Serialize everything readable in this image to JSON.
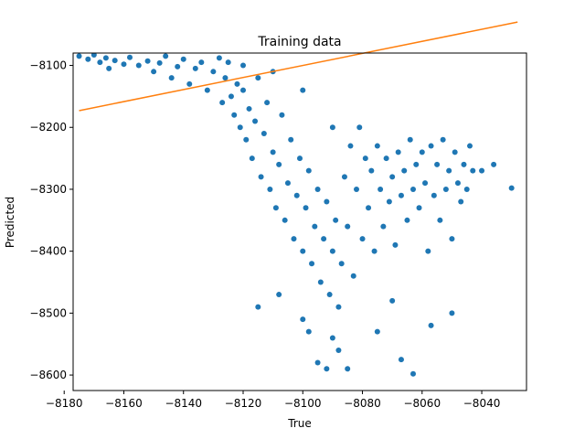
{
  "chart_data": {
    "type": "scatter",
    "title": "Training data",
    "xlabel": "True",
    "ylabel": "Predicted",
    "xlim": [
      -8177,
      -8025
    ],
    "ylim": [
      -8625,
      -8080
    ],
    "xticks": [
      -8180,
      -8160,
      -8140,
      -8120,
      -8100,
      -8080,
      -8060,
      -8040
    ],
    "yticks": [
      -8100,
      -8200,
      -8300,
      -8400,
      -8500,
      -8600
    ],
    "grid": false,
    "colors": {
      "scatter": "#1f77b4",
      "line": "#ff7f0e"
    },
    "series": [
      {
        "kind": "scatter",
        "points": [
          [
            -8175,
            -8085
          ],
          [
            -8172,
            -8090
          ],
          [
            -8170,
            -8083
          ],
          [
            -8168,
            -8095
          ],
          [
            -8166,
            -8088
          ],
          [
            -8165,
            -8105
          ],
          [
            -8163,
            -8092
          ],
          [
            -8160,
            -8098
          ],
          [
            -8158,
            -8087
          ],
          [
            -8155,
            -8100
          ],
          [
            -8152,
            -8093
          ],
          [
            -8150,
            -8110
          ],
          [
            -8148,
            -8096
          ],
          [
            -8146,
            -8085
          ],
          [
            -8144,
            -8120
          ],
          [
            -8142,
            -8102
          ],
          [
            -8140,
            -8090
          ],
          [
            -8138,
            -8130
          ],
          [
            -8136,
            -8105
          ],
          [
            -8134,
            -8095
          ],
          [
            -8132,
            -8140
          ],
          [
            -8130,
            -8110
          ],
          [
            -8128,
            -8088
          ],
          [
            -8127,
            -8160
          ],
          [
            -8126,
            -8120
          ],
          [
            -8125,
            -8095
          ],
          [
            -8124,
            -8150
          ],
          [
            -8123,
            -8180
          ],
          [
            -8122,
            -8130
          ],
          [
            -8121,
            -8200
          ],
          [
            -8120,
            -8140
          ],
          [
            -8120,
            -8100
          ],
          [
            -8119,
            -8220
          ],
          [
            -8118,
            -8170
          ],
          [
            -8117,
            -8250
          ],
          [
            -8116,
            -8190
          ],
          [
            -8115,
            -8120
          ],
          [
            -8114,
            -8280
          ],
          [
            -8113,
            -8210
          ],
          [
            -8112,
            -8160
          ],
          [
            -8111,
            -8300
          ],
          [
            -8110,
            -8240
          ],
          [
            -8110,
            -8110
          ],
          [
            -8109,
            -8330
          ],
          [
            -8108,
            -8260
          ],
          [
            -8107,
            -8180
          ],
          [
            -8106,
            -8350
          ],
          [
            -8105,
            -8290
          ],
          [
            -8104,
            -8220
          ],
          [
            -8103,
            -8380
          ],
          [
            -8102,
            -8310
          ],
          [
            -8101,
            -8250
          ],
          [
            -8100,
            -8400
          ],
          [
            -8100,
            -8140
          ],
          [
            -8099,
            -8330
          ],
          [
            -8098,
            -8270
          ],
          [
            -8097,
            -8420
          ],
          [
            -8096,
            -8360
          ],
          [
            -8095,
            -8300
          ],
          [
            -8094,
            -8450
          ],
          [
            -8093,
            -8380
          ],
          [
            -8092,
            -8320
          ],
          [
            -8091,
            -8470
          ],
          [
            -8090,
            -8400
          ],
          [
            -8090,
            -8200
          ],
          [
            -8089,
            -8350
          ],
          [
            -8088,
            -8490
          ],
          [
            -8087,
            -8420
          ],
          [
            -8086,
            -8280
          ],
          [
            -8085,
            -8360
          ],
          [
            -8084,
            -8230
          ],
          [
            -8083,
            -8440
          ],
          [
            -8082,
            -8300
          ],
          [
            -8081,
            -8200
          ],
          [
            -8080,
            -8380
          ],
          [
            -8079,
            -8250
          ],
          [
            -8078,
            -8330
          ],
          [
            -8077,
            -8270
          ],
          [
            -8076,
            -8400
          ],
          [
            -8075,
            -8230
          ],
          [
            -8074,
            -8300
          ],
          [
            -8073,
            -8360
          ],
          [
            -8072,
            -8250
          ],
          [
            -8071,
            -8320
          ],
          [
            -8070,
            -8280
          ],
          [
            -8069,
            -8390
          ],
          [
            -8068,
            -8240
          ],
          [
            -8067,
            -8310
          ],
          [
            -8066,
            -8270
          ],
          [
            -8065,
            -8350
          ],
          [
            -8064,
            -8220
          ],
          [
            -8063,
            -8300
          ],
          [
            -8062,
            -8260
          ],
          [
            -8061,
            -8330
          ],
          [
            -8060,
            -8240
          ],
          [
            -8059,
            -8290
          ],
          [
            -8058,
            -8400
          ],
          [
            -8057,
            -8230
          ],
          [
            -8056,
            -8310
          ],
          [
            -8055,
            -8260
          ],
          [
            -8054,
            -8350
          ],
          [
            -8053,
            -8220
          ],
          [
            -8052,
            -8300
          ],
          [
            -8051,
            -8270
          ],
          [
            -8050,
            -8380
          ],
          [
            -8049,
            -8240
          ],
          [
            -8048,
            -8290
          ],
          [
            -8047,
            -8320
          ],
          [
            -8046,
            -8260
          ],
          [
            -8045,
            -8300
          ],
          [
            -8044,
            -8230
          ],
          [
            -8043,
            -8270
          ],
          [
            -8040,
            -8270
          ],
          [
            -8036,
            -8260
          ],
          [
            -8030,
            -8298
          ],
          [
            -8095,
            -8580
          ],
          [
            -8092,
            -8590
          ],
          [
            -8088,
            -8560
          ],
          [
            -8085,
            -8590
          ],
          [
            -8067,
            -8575
          ],
          [
            -8063,
            -8598
          ],
          [
            -8075,
            -8530
          ],
          [
            -8070,
            -8480
          ],
          [
            -8057,
            -8520
          ],
          [
            -8050,
            -8500
          ],
          [
            -8115,
            -8490
          ],
          [
            -8108,
            -8470
          ],
          [
            -8100,
            -8510
          ],
          [
            -8098,
            -8530
          ],
          [
            -8090,
            -8540
          ]
        ]
      },
      {
        "kind": "line",
        "points": [
          [
            -8175,
            -8173
          ],
          [
            -8028,
            -8030
          ]
        ]
      }
    ]
  }
}
